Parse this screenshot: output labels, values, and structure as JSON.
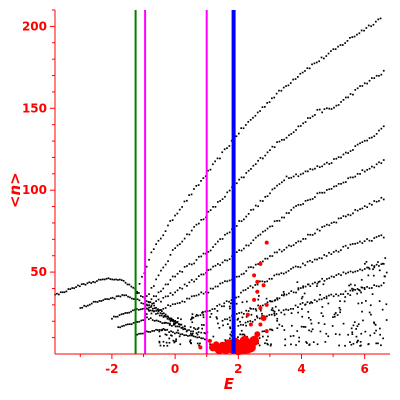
{
  "chart_data": {
    "type": "scatter",
    "xlabel": "E",
    "ylabel": "<n>",
    "xlim": [
      -3.8,
      6.8
    ],
    "ylim": [
      0,
      210
    ],
    "xticks": [
      -2,
      0,
      2,
      4,
      6
    ],
    "yticks": [
      50,
      100,
      150,
      200
    ],
    "xtick_labels": [
      "-2",
      "0",
      "2",
      "4",
      "6"
    ],
    "ytick_labels": [
      "50",
      "100",
      "150",
      "200"
    ],
    "colors": {
      "axes": "#ff0000",
      "points": "#000000",
      "highlight_points": "#ff0000",
      "green_line": "#008000",
      "magenta_line": "#ff00ff",
      "blue_line": "#0000ff"
    },
    "vertical_lines": [
      {
        "x": -1.25,
        "color": "#008000",
        "width": "thin"
      },
      {
        "x": -0.95,
        "color": "#ff00ff",
        "width": "thin"
      },
      {
        "x": 1.0,
        "color": "#ff00ff",
        "width": "thin"
      },
      {
        "x": 1.85,
        "color": "#0000ff",
        "width": "thick"
      }
    ],
    "fan_bands": [
      {
        "x": [
          -1.2,
          -0.8,
          0.0,
          1.0,
          2.0,
          3.0,
          4.0,
          5.0,
          5.5,
          6.5
        ],
        "y": [
          38,
          60,
          85,
          110,
          135,
          155,
          172,
          185,
          192,
          205
        ]
      },
      {
        "x": [
          -0.9,
          0.0,
          1.0,
          2.0,
          3.0,
          4.0,
          4.5,
          5.0,
          6.0,
          6.6
        ],
        "y": [
          35,
          65,
          85,
          105,
          125,
          140,
          148,
          150,
          165,
          172
        ]
      },
      {
        "x": [
          -0.9,
          0.0,
          1.0,
          2.0,
          3.0,
          3.5,
          4.0,
          5.0,
          6.0,
          6.6
        ],
        "y": [
          30,
          48,
          62,
          80,
          98,
          108,
          110,
          118,
          130,
          138
        ]
      },
      {
        "x": [
          -0.9,
          0.0,
          1.0,
          2.0,
          3.0,
          4.0,
          5.0,
          6.0,
          6.6
        ],
        "y": [
          28,
          38,
          50,
          62,
          78,
          92,
          102,
          112,
          118
        ]
      },
      {
        "x": [
          -0.9,
          0.0,
          1.0,
          2.0,
          3.0,
          4.0,
          5.0,
          6.0,
          6.6
        ],
        "y": [
          25,
          30,
          38,
          48,
          60,
          70,
          80,
          90,
          95
        ]
      },
      {
        "x": [
          0.5,
          1.5,
          2.5,
          3.5,
          4.5,
          5.5,
          6.6
        ],
        "y": [
          22,
          30,
          42,
          50,
          58,
          66,
          72
        ]
      },
      {
        "x": [
          1.5,
          2.5,
          3.5,
          4.5,
          5.5,
          6.6
        ],
        "y": [
          20,
          28,
          36,
          44,
          50,
          55
        ]
      },
      {
        "x": [
          2.0,
          3.0,
          4.0,
          5.0,
          6.0,
          6.6
        ],
        "y": [
          18,
          24,
          30,
          36,
          40,
          43
        ]
      }
    ],
    "low_curves": [
      {
        "x": [
          -3.8,
          -3.0,
          -2.4,
          -2.0,
          -1.7,
          -1.4,
          -1.2,
          -1.0,
          -0.7,
          -0.3,
          0.0
        ],
        "y": [
          36,
          42,
          45,
          46,
          45,
          42,
          38,
          34,
          30,
          24,
          20
        ]
      },
      {
        "x": [
          -3.0,
          -2.5,
          -2.0,
          -1.6,
          -1.2,
          -0.9,
          -0.5,
          -0.2,
          0.2
        ],
        "y": [
          28,
          32,
          34,
          36,
          33,
          30,
          26,
          22,
          18
        ]
      },
      {
        "x": [
          -2.0,
          -1.6,
          -1.2,
          -0.9,
          -0.5,
          0.0,
          0.3
        ],
        "y": [
          22,
          25,
          27,
          28,
          24,
          20,
          16
        ]
      },
      {
        "x": [
          -1.8,
          -1.3,
          -0.9,
          -0.5,
          0.0,
          0.5
        ],
        "y": [
          16,
          19,
          22,
          20,
          17,
          14
        ]
      },
      {
        "x": [
          -1.2,
          -0.8,
          -0.4,
          0.0,
          0.5,
          1.0
        ],
        "y": [
          12,
          14,
          15,
          13,
          11,
          9
        ]
      }
    ],
    "scatter_cloud": {
      "xmin": -0.5,
      "xmax": 6.7,
      "ymin": 5,
      "ymax": 60
    },
    "red_points": [
      {
        "x": 1.2,
        "y": 4,
        "r": 4
      },
      {
        "x": 1.4,
        "y": 3,
        "r": 5
      },
      {
        "x": 1.5,
        "y": 5,
        "r": 4
      },
      {
        "x": 1.6,
        "y": 3,
        "r": 5
      },
      {
        "x": 1.7,
        "y": 6,
        "r": 5
      },
      {
        "x": 1.8,
        "y": 4,
        "r": 6
      },
      {
        "x": 1.9,
        "y": 7,
        "r": 5
      },
      {
        "x": 2.0,
        "y": 3,
        "r": 6
      },
      {
        "x": 2.1,
        "y": 5,
        "r": 6
      },
      {
        "x": 2.2,
        "y": 8,
        "r": 5
      },
      {
        "x": 2.3,
        "y": 4,
        "r": 6
      },
      {
        "x": 2.4,
        "y": 6,
        "r": 5
      },
      {
        "x": 2.5,
        "y": 8,
        "r": 5
      },
      {
        "x": 2.4,
        "y": 4,
        "r": 5
      },
      {
        "x": 2.2,
        "y": 3,
        "r": 5
      },
      {
        "x": 1.3,
        "y": 6,
        "r": 3
      },
      {
        "x": 1.1,
        "y": 8,
        "r": 2
      },
      {
        "x": 0.8,
        "y": 4,
        "r": 2
      },
      {
        "x": 2.6,
        "y": 12,
        "r": 3
      },
      {
        "x": 2.7,
        "y": 18,
        "r": 2
      },
      {
        "x": 2.8,
        "y": 22,
        "r": 3
      },
      {
        "x": 2.7,
        "y": 28,
        "r": 2
      },
      {
        "x": 2.9,
        "y": 30,
        "r": 2
      },
      {
        "x": 2.6,
        "y": 38,
        "r": 2
      },
      {
        "x": 2.8,
        "y": 42,
        "r": 2
      },
      {
        "x": 2.5,
        "y": 48,
        "r": 2
      },
      {
        "x": 2.7,
        "y": 55,
        "r": 2
      },
      {
        "x": 2.9,
        "y": 68,
        "r": 2
      },
      {
        "x": 2.3,
        "y": 24,
        "r": 2
      },
      {
        "x": 2.5,
        "y": 33,
        "r": 2
      },
      {
        "x": 2.6,
        "y": 44,
        "r": 2
      },
      {
        "x": 2.4,
        "y": 18,
        "r": 2
      },
      {
        "x": 2.9,
        "y": 14,
        "r": 2
      }
    ]
  }
}
